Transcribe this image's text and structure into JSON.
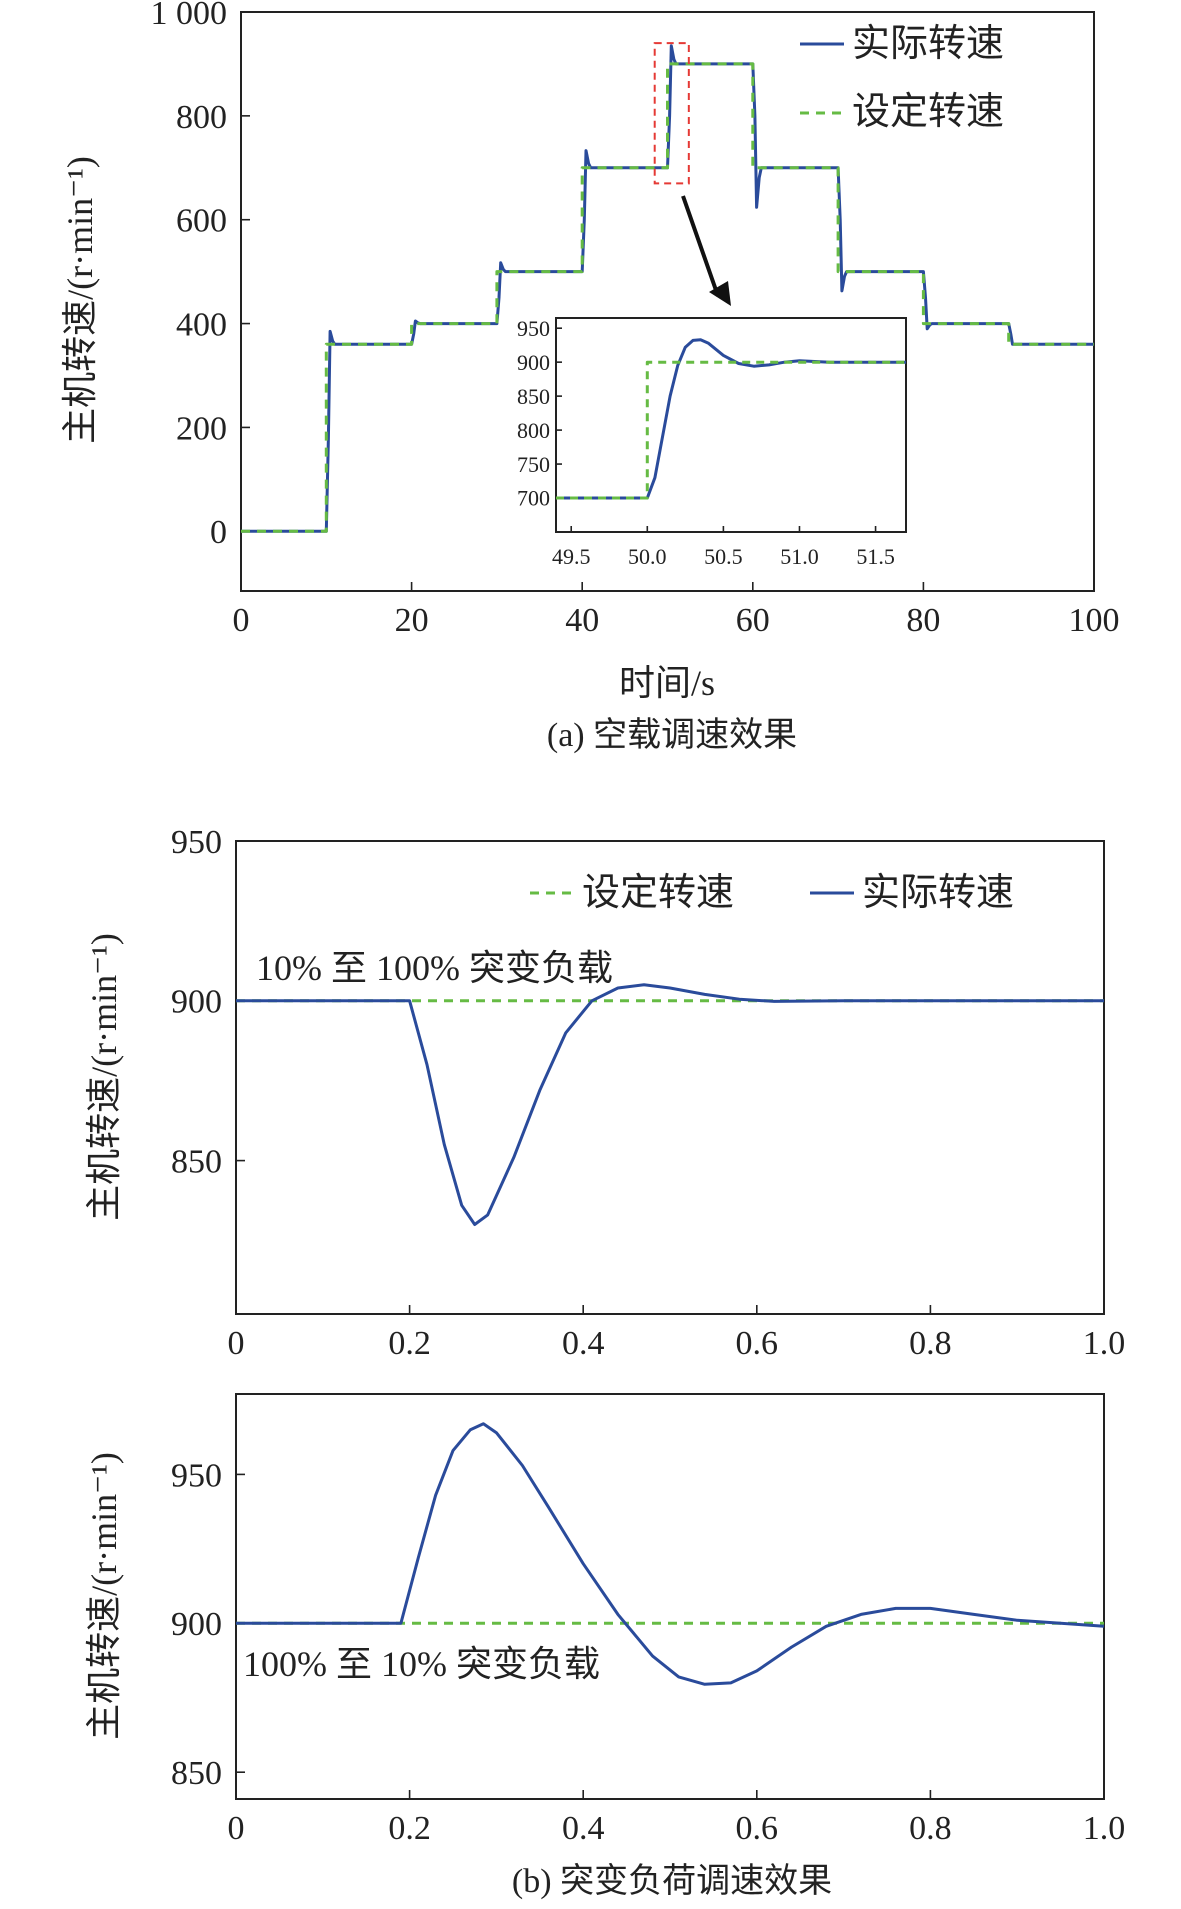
{
  "figure": {
    "caption_a": "(a) 空载调速效果",
    "caption_b": "(b) 突变负荷调速效果"
  },
  "colors": {
    "actual": "#2a4b9b",
    "setpoint": "#66bb44",
    "zoom_box": "#e53935",
    "axis": "#222222"
  },
  "chart_data": [
    {
      "id": "a",
      "type": "line",
      "xlabel": "时间/s",
      "ylabel": "主机转速/(r·min⁻¹)",
      "xlim": [
        0,
        100
      ],
      "ylim": [
        -115,
        1000
      ],
      "xticks": [
        0,
        20,
        40,
        60,
        80,
        100
      ],
      "xtick_labels": [
        "0",
        "20",
        "40",
        "60",
        "80",
        "100"
      ],
      "yticks": [
        0,
        200,
        400,
        600,
        800,
        1000
      ],
      "ytick_labels": [
        "0",
        "200",
        "400",
        "600",
        "800",
        "1 000"
      ],
      "legend": [
        "实际转速",
        "设定转速"
      ],
      "legend_position": "top-right",
      "setpoint_steps": [
        {
          "t": 0,
          "v": 0
        },
        {
          "t": 10,
          "v": 360
        },
        {
          "t": 20,
          "v": 400
        },
        {
          "t": 30,
          "v": 500
        },
        {
          "t": 40,
          "v": 700
        },
        {
          "t": 50,
          "v": 900
        },
        {
          "t": 60,
          "v": 700
        },
        {
          "t": 70,
          "v": 500
        },
        {
          "t": 80,
          "v": 400
        },
        {
          "t": 90,
          "v": 360
        }
      ],
      "actual_overshoot_peaks": [
        385,
        405,
        517,
        733,
        935,
        624,
        463,
        390,
        360
      ],
      "zoom_region": {
        "x": [
          48.5,
          52.5
        ],
        "y": [
          670,
          940
        ]
      }
    },
    {
      "id": "a-inset",
      "type": "line",
      "xlim": [
        49.4,
        51.7
      ],
      "ylim": [
        650,
        965
      ],
      "xticks": [
        49.5,
        50.0,
        50.5,
        51.0,
        51.5
      ],
      "xtick_labels": [
        "49.5",
        "50.0",
        "50.5",
        "51.0",
        "51.5"
      ],
      "yticks": [
        700,
        750,
        800,
        850,
        900,
        950
      ],
      "ytick_labels": [
        "700",
        "750",
        "800",
        "850",
        "900",
        "950"
      ],
      "setpoint": [
        [
          49.4,
          700
        ],
        [
          50.0,
          700
        ],
        [
          50.0,
          900
        ],
        [
          51.7,
          900
        ]
      ],
      "actual": [
        [
          49.4,
          700
        ],
        [
          50.0,
          700
        ],
        [
          50.05,
          730
        ],
        [
          50.1,
          790
        ],
        [
          50.15,
          850
        ],
        [
          50.2,
          895
        ],
        [
          50.25,
          922
        ],
        [
          50.3,
          932
        ],
        [
          50.35,
          933
        ],
        [
          50.4,
          928
        ],
        [
          50.5,
          910
        ],
        [
          50.6,
          898
        ],
        [
          50.7,
          894
        ],
        [
          50.8,
          896
        ],
        [
          50.9,
          900
        ],
        [
          51.0,
          902
        ],
        [
          51.2,
          900
        ],
        [
          51.7,
          900
        ]
      ]
    },
    {
      "id": "b1",
      "type": "line",
      "annotation": "10% 至 100% 突变负载",
      "ylabel": "主机转速/(r·min⁻¹)",
      "xlim": [
        0,
        1.0
      ],
      "ylim": [
        802,
        950
      ],
      "xticks": [
        0,
        0.2,
        0.4,
        0.6,
        0.8,
        1.0
      ],
      "xtick_labels": [
        "0",
        "0.2",
        "0.4",
        "0.6",
        "0.8",
        "1.0"
      ],
      "yticks": [
        850,
        900,
        950
      ],
      "ytick_labels": [
        "850",
        "900",
        "950"
      ],
      "legend": [
        "设定转速",
        "实际转速"
      ],
      "legend_position": "top-right",
      "setpoint": [
        [
          0,
          900
        ],
        [
          1.0,
          900
        ]
      ],
      "actual": [
        [
          0,
          900
        ],
        [
          0.2,
          900
        ],
        [
          0.22,
          880
        ],
        [
          0.24,
          855
        ],
        [
          0.26,
          836
        ],
        [
          0.275,
          830
        ],
        [
          0.29,
          833
        ],
        [
          0.32,
          851
        ],
        [
          0.35,
          872
        ],
        [
          0.38,
          890
        ],
        [
          0.41,
          900
        ],
        [
          0.44,
          904
        ],
        [
          0.47,
          905
        ],
        [
          0.5,
          904
        ],
        [
          0.54,
          902
        ],
        [
          0.58,
          900.5
        ],
        [
          0.62,
          899.8
        ],
        [
          0.7,
          900
        ],
        [
          1.0,
          900
        ]
      ]
    },
    {
      "id": "b2",
      "type": "line",
      "annotation": "100% 至 10% 突变负载",
      "ylabel": "主机转速/(r·min⁻¹)",
      "xlim": [
        0,
        1.0
      ],
      "ylim": [
        841,
        977
      ],
      "xticks": [
        0,
        0.2,
        0.4,
        0.6,
        0.8,
        1.0
      ],
      "xtick_labels": [
        "0",
        "0.2",
        "0.4",
        "0.6",
        "0.8",
        "1.0"
      ],
      "yticks": [
        850,
        900,
        950
      ],
      "ytick_labels": [
        "850",
        "900",
        "950"
      ],
      "setpoint": [
        [
          0,
          900
        ],
        [
          1.0,
          900
        ]
      ],
      "actual": [
        [
          0,
          900
        ],
        [
          0.19,
          900
        ],
        [
          0.21,
          922
        ],
        [
          0.23,
          943
        ],
        [
          0.25,
          958
        ],
        [
          0.27,
          965
        ],
        [
          0.285,
          967
        ],
        [
          0.3,
          964
        ],
        [
          0.33,
          953
        ],
        [
          0.36,
          939
        ],
        [
          0.4,
          920
        ],
        [
          0.44,
          903
        ],
        [
          0.48,
          889
        ],
        [
          0.51,
          882
        ],
        [
          0.54,
          879.5
        ],
        [
          0.57,
          880
        ],
        [
          0.6,
          884
        ],
        [
          0.64,
          892
        ],
        [
          0.68,
          899
        ],
        [
          0.72,
          903
        ],
        [
          0.76,
          905
        ],
        [
          0.8,
          905
        ],
        [
          0.85,
          903
        ],
        [
          0.9,
          901
        ],
        [
          0.95,
          900
        ],
        [
          1.0,
          899
        ]
      ]
    }
  ]
}
